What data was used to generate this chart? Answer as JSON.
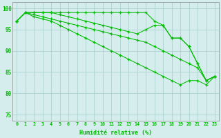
{
  "x": [
    0,
    1,
    2,
    3,
    4,
    5,
    6,
    7,
    8,
    9,
    10,
    11,
    12,
    13,
    14,
    15,
    16,
    17,
    18,
    19,
    20,
    21,
    22,
    23
  ],
  "line1": [
    97,
    99,
    99,
    99,
    99,
    99,
    99,
    99,
    99,
    99,
    99,
    99,
    99,
    99,
    99,
    99,
    97,
    96,
    93,
    93,
    91,
    87,
    83,
    84
  ],
  "line2": [
    97,
    99,
    99,
    99,
    99,
    98.5,
    98,
    97.5,
    97,
    96.5,
    96,
    95.5,
    95,
    94.5,
    94,
    95,
    96,
    96,
    93,
    93,
    91,
    87,
    83,
    84
  ],
  "line3": [
    97,
    99,
    98.5,
    98,
    97.5,
    97,
    96.5,
    96,
    95.5,
    95,
    94.5,
    94,
    93.5,
    93,
    92.5,
    92,
    91,
    90,
    89,
    88,
    87,
    86,
    83,
    84
  ],
  "line4": [
    97,
    99,
    98,
    97.5,
    97,
    96,
    95,
    94,
    93,
    92,
    91,
    90,
    89,
    88,
    87,
    86,
    85,
    84,
    83,
    82,
    83,
    83,
    82,
    84
  ],
  "color": "#00bb00",
  "bg_color": "#d5eded",
  "grid_color": "#a8cccc",
  "xlabel": "Humidité relative (%)",
  "ylim": [
    73.5,
    101.5
  ],
  "yticks": [
    75,
    80,
    85,
    90,
    95,
    100
  ],
  "xticks": [
    0,
    1,
    2,
    3,
    4,
    5,
    6,
    7,
    8,
    9,
    10,
    11,
    12,
    13,
    14,
    15,
    16,
    17,
    18,
    19,
    20,
    21,
    22,
    23
  ]
}
